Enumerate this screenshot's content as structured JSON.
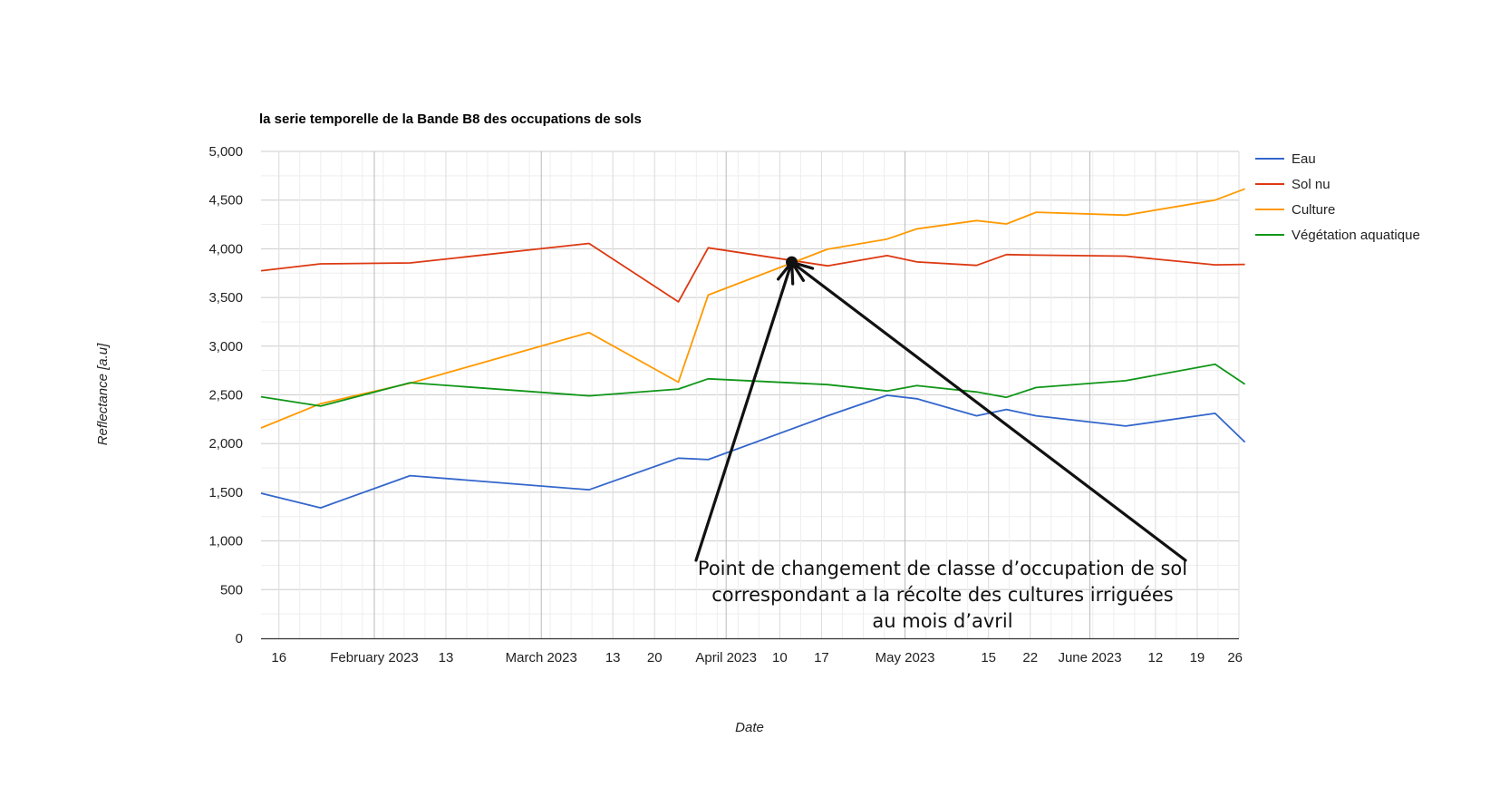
{
  "chart_data": {
    "type": "line",
    "title": "la serie temporelle de la Bande B8 des occupations de sols",
    "xlabel": "Date",
    "ylabel": "Reflectance [a.u]",
    "xlim": [
      "2023-01-13",
      "2023-06-26"
    ],
    "ylim": [
      0,
      5000
    ],
    "y_ticks": [
      0,
      500,
      1000,
      1500,
      2000,
      2500,
      3000,
      3500,
      4000,
      4500,
      5000
    ],
    "y_tick_labels": [
      "0",
      "500",
      "1,000",
      "1,500",
      "2,000",
      "2,500",
      "3,000",
      "3,500",
      "4,000",
      "4,500",
      "5,000"
    ],
    "x_ticks": [
      {
        "date": "2023-01-16",
        "label": "16"
      },
      {
        "date": "2023-02-01",
        "label": "February 2023"
      },
      {
        "date": "2023-02-13",
        "label": "13"
      },
      {
        "date": "2023-03-01",
        "label": "March 2023"
      },
      {
        "date": "2023-03-13",
        "label": "13"
      },
      {
        "date": "2023-03-20",
        "label": "20"
      },
      {
        "date": "2023-04-01",
        "label": "April 2023"
      },
      {
        "date": "2023-04-10",
        "label": "10"
      },
      {
        "date": "2023-04-17",
        "label": "17"
      },
      {
        "date": "2023-05-01",
        "label": "May 2023"
      },
      {
        "date": "2023-05-15",
        "label": "15"
      },
      {
        "date": "2023-05-22",
        "label": "22"
      },
      {
        "date": "2023-06-01",
        "label": "June 2023"
      },
      {
        "date": "2023-06-12",
        "label": "12"
      },
      {
        "date": "2023-06-19",
        "label": "19"
      },
      {
        "date": "2023-06-26",
        "label": "26"
      }
    ],
    "x": [
      "2023-01-13",
      "2023-01-23",
      "2023-02-07",
      "2023-03-09",
      "2023-03-24",
      "2023-03-29",
      "2023-04-18",
      "2023-04-28",
      "2023-05-03",
      "2023-05-13",
      "2023-05-18",
      "2023-05-23",
      "2023-06-07",
      "2023-06-22",
      "2023-06-27"
    ],
    "series": [
      {
        "name": "Eau",
        "color": "#3366cc",
        "values": [
          1490,
          1340,
          1670,
          1525,
          1850,
          1835,
          2285,
          2495,
          2460,
          2285,
          2350,
          2285,
          2180,
          2310,
          2015
        ]
      },
      {
        "name": "Sol nu",
        "color": "#dc3912",
        "values": [
          3775,
          3845,
          3855,
          4055,
          3455,
          4010,
          3825,
          3930,
          3865,
          3830,
          3940,
          3935,
          3925,
          3835,
          3840
        ]
      },
      {
        "name": "Culture",
        "color": "#ff9900",
        "values": [
          2160,
          2410,
          2620,
          3140,
          2630,
          3525,
          3995,
          4100,
          4205,
          4290,
          4255,
          4375,
          4345,
          4500,
          4615
        ]
      },
      {
        "name": "Végétation aquatique",
        "color": "#109618",
        "values": [
          2480,
          2385,
          2625,
          2490,
          2560,
          2665,
          2605,
          2540,
          2595,
          2530,
          2475,
          2575,
          2645,
          2815,
          2610
        ]
      }
    ],
    "legend": "right",
    "grid": true,
    "annotation": {
      "lines": [
        "Point de changement de classe d’occupation de sol",
        "correspondant a la récolte des cultures irriguées",
        "au mois d’avril"
      ],
      "target_date": "2023-04-12",
      "target_value": 3900
    }
  }
}
